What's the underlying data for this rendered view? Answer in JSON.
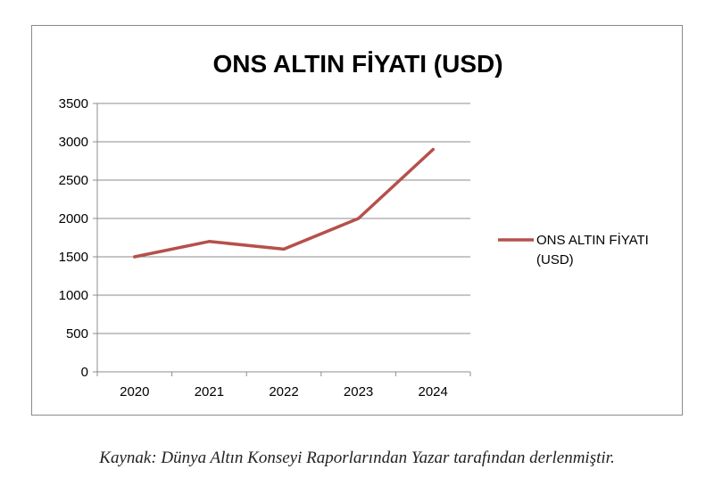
{
  "chart_data": {
    "type": "line",
    "title": "ONS ALTIN FİYATI (USD)",
    "categories": [
      "2020",
      "2021",
      "2022",
      "2023",
      "2024"
    ],
    "series": [
      {
        "name": "ONS ALTIN FİYATI (USD)",
        "values": [
          1500,
          1700,
          1600,
          2000,
          2900
        ],
        "color": "#b5504b"
      }
    ],
    "ylim": [
      0,
      3500
    ],
    "yticks": [
      0,
      500,
      1000,
      1500,
      2000,
      2500,
      3000,
      3500
    ],
    "grid": true,
    "legend_position": "right",
    "legend_lines": [
      "ONS ALTIN FİYATI",
      "(USD)"
    ]
  },
  "caption": "Kaynak: Dünya Altın Konseyi Raporlarından Yazar tarafından derlenmiştir."
}
